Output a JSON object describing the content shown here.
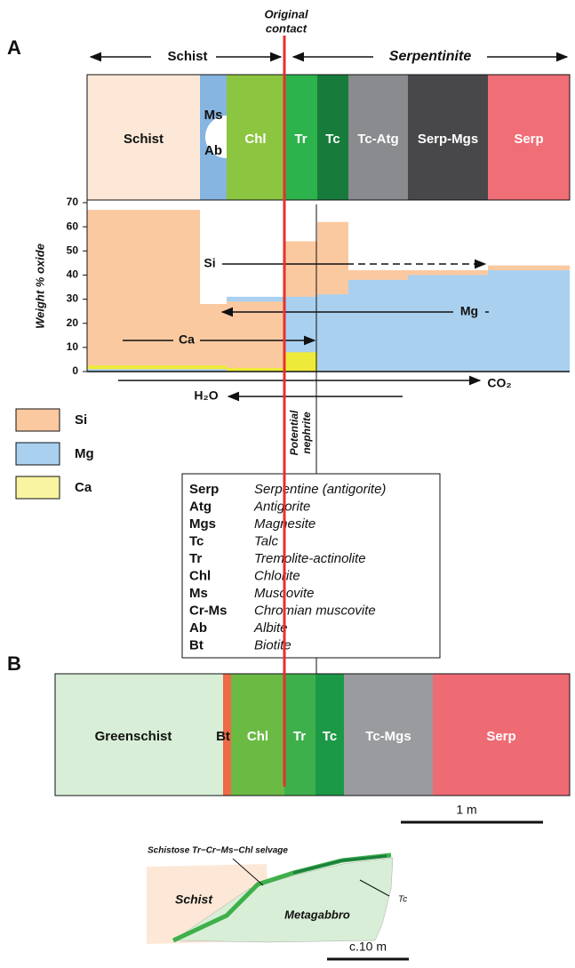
{
  "panel_a": {
    "label": "A",
    "original_contact": [
      "Original",
      "contact"
    ],
    "schist_span": "Schist",
    "serpentinite_span": "Serpentinite",
    "zones": [
      {
        "labels": [
          "Schist"
        ],
        "color": "#fde8d7"
      },
      {
        "labels": [
          "Ms",
          "Ab"
        ],
        "color": "#86b5e1"
      },
      {
        "labels": [
          "Chl"
        ],
        "color": "#8cc540"
      },
      {
        "labels": [
          "Tr"
        ],
        "color": "#2db34b"
      },
      {
        "labels": [
          "Tc"
        ],
        "color": "#177c3b"
      },
      {
        "labels": [
          "Tc-Atg"
        ],
        "color": "#898b8e"
      },
      {
        "labels": [
          "Serp-Mgs"
        ],
        "color": "#48484b"
      },
      {
        "labels": [
          "Serp"
        ],
        "color": "#f06e76"
      }
    ],
    "chart": {
      "type": "area",
      "y_label": "Weight % oxide",
      "ylim": [
        0,
        70
      ],
      "yticks": [
        0,
        10,
        20,
        30,
        40,
        50,
        60,
        70
      ],
      "series": [
        {
          "name": "Si",
          "color": "#fbc9a0",
          "values": [
            67,
            28,
            29,
            54,
            62,
            42,
            42,
            44
          ]
        },
        {
          "name": "Mg",
          "color": "#a9d0ef",
          "values": [
            1,
            1,
            31,
            31,
            32,
            38,
            40,
            42
          ]
        },
        {
          "name": "Ca",
          "color": "#eeea3a",
          "values": [
            2.5,
            2.5,
            1.5,
            8,
            0,
            0,
            0,
            0
          ]
        }
      ],
      "annotations": [
        "Si",
        "Mg",
        "Ca",
        "H₂O",
        "CO₂"
      ]
    },
    "legend_colors": [
      "#fbc9a0",
      "#a9d0ef",
      "#f8f4a0"
    ],
    "potential_nephrite": [
      "Potential",
      "nephrite"
    ],
    "abbreviations": [
      [
        "Serp",
        "Serpentine (antigorite)"
      ],
      [
        "Atg",
        "Antigorite"
      ],
      [
        "Mgs",
        "Magnesite"
      ],
      [
        "Tc",
        "Talc"
      ],
      [
        "Tr",
        "Tremolite-actinolite"
      ],
      [
        "Chl",
        "Chlorite"
      ],
      [
        "Ms",
        "Muscovite"
      ],
      [
        "Cr-Ms",
        "Chromian muscovite"
      ],
      [
        "Ab",
        "Albite"
      ],
      [
        "Bt",
        "Biotite"
      ]
    ]
  },
  "panel_b": {
    "label": "B",
    "zones": [
      {
        "label": "Greenschist",
        "color": "#d8eed7"
      },
      {
        "label": "Bt",
        "color": "#ef6a48"
      },
      {
        "label": "Chl",
        "color": "#6bba44"
      },
      {
        "label": "Tr",
        "color": "#3eb04b"
      },
      {
        "label": "Tc",
        "color": "#1c9947"
      },
      {
        "label": "Tc-Mgs",
        "color": "#999b9e"
      },
      {
        "label": "Serp",
        "color": "#ef6b74"
      }
    ],
    "scale": "1 m"
  },
  "sketch": {
    "selvage_label": "Schistose Tr−Cr−Ms−Chl selvage",
    "schist": "Schist",
    "metagabbro": "Metagabbro",
    "tc": "Tc",
    "scale": "c.10 m"
  }
}
